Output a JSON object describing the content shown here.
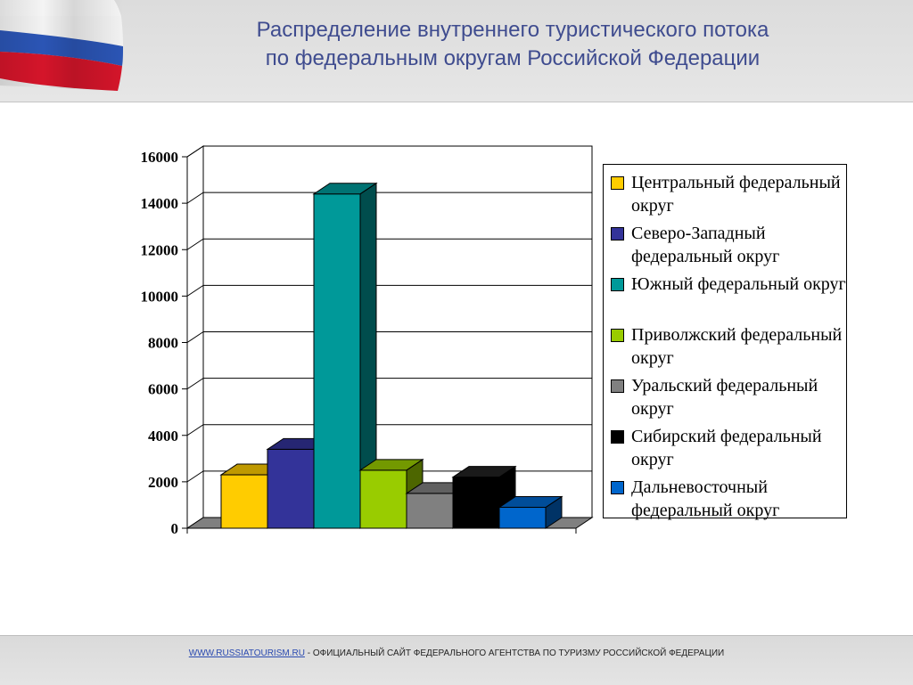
{
  "header": {
    "title_line1": "Распределение внутреннего туристического потока",
    "title_line2": "по федеральным округам Российской Федерации"
  },
  "chart_data": {
    "type": "bar",
    "title": "",
    "xlabel": "",
    "ylabel": "",
    "ylim": [
      0,
      16000
    ],
    "yticks": [
      0,
      2000,
      4000,
      6000,
      8000,
      10000,
      12000,
      14000,
      16000
    ],
    "grid": true,
    "legend_position": "right",
    "series": [
      {
        "name": "Центральный федеральный округ",
        "value": 2300,
        "color": "#ffcc00"
      },
      {
        "name": "Северо-Западный федеральный округ",
        "value": 3400,
        "color": "#333399"
      },
      {
        "name": "Южный федеральный округ",
        "value": 14400,
        "color": "#009999"
      },
      {
        "name": "Приволжский федеральный округ",
        "value": 2500,
        "color": "#99cc00"
      },
      {
        "name": "Уральский федеральный округ",
        "value": 1500,
        "color": "#808080"
      },
      {
        "name": "Сибирский федеральный округ",
        "value": 2200,
        "color": "#000000"
      },
      {
        "name": "Дальневосточный федеральный округ",
        "value": 900,
        "color": "#0066cc"
      }
    ]
  },
  "footer": {
    "link": "WWW.RUSSIATOURISM.RU",
    "text": " - ОФИЦИАЛЬНЫЙ САЙТ ФЕДЕРАЛЬНОГО АГЕНТСТВА ПО ТУРИЗМУ РОССИЙСКОЙ ФЕДЕРАЦИИ"
  }
}
